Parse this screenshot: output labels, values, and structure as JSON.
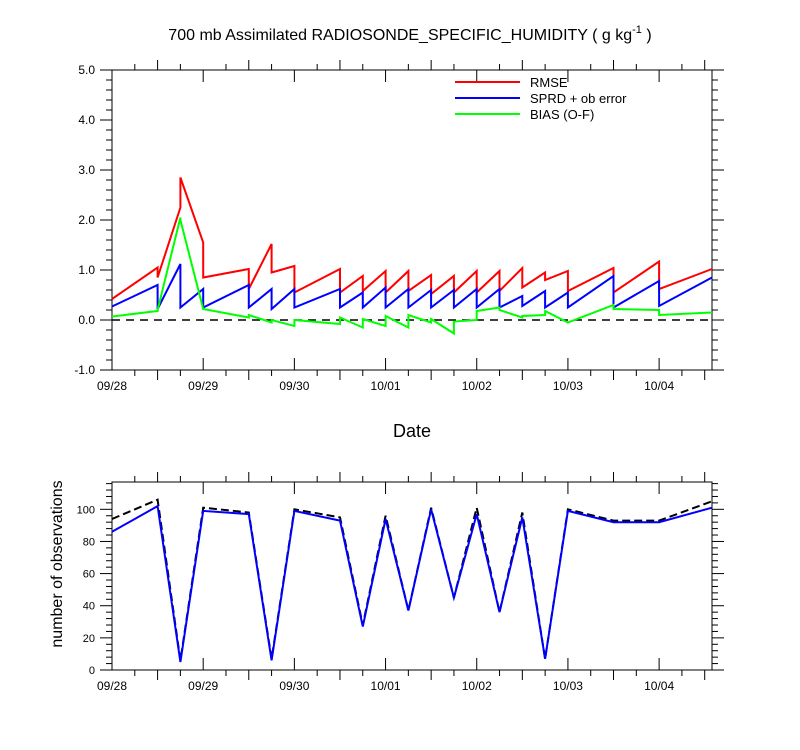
{
  "title": "700 mb Assimilated RADIOSONDE_SPECIFIC_HUMIDITY ( g kg",
  "title_superscript": "-1",
  "title_close": " )",
  "chart_data": [
    {
      "type": "line",
      "name": "error-statistics",
      "xlabel": "Date",
      "ylabel": "",
      "x_tick_labels": [
        "09/28",
        "09/29",
        "09/30",
        "10/01",
        "10/02",
        "10/03",
        "10/04"
      ],
      "xlim": [
        0,
        6.58
      ],
      "ylim": [
        -1.0,
        5.0
      ],
      "y_ticks": [
        -1.0,
        0.0,
        1.0,
        2.0,
        3.0,
        4.0,
        5.0
      ],
      "y_tick_labels": [
        "-1.0",
        "0.0",
        "1.0",
        "2.0",
        "3.0",
        "4.0",
        "5.0"
      ],
      "legend_position": "top-right",
      "reference_line": 0.0,
      "series": [
        {
          "name": "RMSE",
          "color": "#ff0000",
          "x": [
            0,
            0.5,
            0.5,
            0.75,
            0.75,
            1.0,
            1.0,
            1.5,
            1.5,
            1.75,
            1.75,
            2.0,
            2.0,
            2.5,
            2.5,
            2.75,
            2.75,
            3.0,
            3.0,
            3.25,
            3.25,
            3.5,
            3.5,
            3.75,
            3.75,
            4.0,
            4.0,
            4.25,
            4.25,
            4.5,
            4.5,
            4.75,
            4.75,
            5.0,
            5.0,
            5.5,
            5.5,
            6.0,
            6.0,
            6.58
          ],
          "values": [
            0.42,
            1.05,
            0.85,
            2.25,
            2.85,
            1.55,
            0.85,
            1.02,
            0.62,
            1.52,
            0.95,
            1.08,
            0.55,
            1.02,
            0.55,
            0.88,
            0.58,
            0.98,
            0.55,
            0.98,
            0.58,
            0.9,
            0.52,
            0.88,
            0.55,
            0.98,
            0.55,
            0.98,
            0.58,
            1.04,
            0.65,
            0.95,
            0.8,
            0.98,
            0.58,
            1.04,
            0.55,
            1.17,
            0.62,
            1.02
          ]
        },
        {
          "name": "SPRD + ob error",
          "color": "#0000ff",
          "x": [
            0,
            0.5,
            0.5,
            0.75,
            0.75,
            1.0,
            1.0,
            1.5,
            1.5,
            1.75,
            1.75,
            2.0,
            2.0,
            2.5,
            2.5,
            2.75,
            2.75,
            3.0,
            3.0,
            3.25,
            3.25,
            3.5,
            3.5,
            3.75,
            3.75,
            4.0,
            4.0,
            4.25,
            4.25,
            4.5,
            4.5,
            4.75,
            4.75,
            5.0,
            5.0,
            5.5,
            5.5,
            6.0,
            6.0,
            6.58
          ],
          "values": [
            0.27,
            0.7,
            0.22,
            1.12,
            0.25,
            0.62,
            0.25,
            0.7,
            0.25,
            0.62,
            0.22,
            0.62,
            0.25,
            0.62,
            0.25,
            0.55,
            0.25,
            0.65,
            0.25,
            0.62,
            0.25,
            0.6,
            0.25,
            0.6,
            0.25,
            0.62,
            0.25,
            0.62,
            0.25,
            0.48,
            0.28,
            0.58,
            0.25,
            0.55,
            0.25,
            0.88,
            0.25,
            0.78,
            0.28,
            0.85
          ]
        },
        {
          "name": "BIAS (O-F)",
          "color": "#00ff00",
          "x": [
            0,
            0.5,
            0.5,
            0.75,
            0.75,
            1.0,
            1.0,
            1.5,
            1.5,
            1.75,
            1.75,
            2.0,
            2.0,
            2.5,
            2.5,
            2.75,
            2.75,
            3.0,
            3.0,
            3.25,
            3.25,
            3.5,
            3.5,
            3.75,
            3.75,
            4.0,
            4.0,
            4.25,
            4.25,
            4.5,
            4.5,
            4.75,
            4.75,
            5.0,
            5.0,
            5.5,
            5.5,
            6.0,
            6.0,
            6.58
          ],
          "values": [
            0.07,
            0.18,
            0.2,
            2.05,
            2.0,
            0.22,
            0.22,
            0.05,
            0.1,
            -0.05,
            0.0,
            -0.12,
            0.0,
            -0.08,
            0.05,
            -0.15,
            0.02,
            -0.12,
            0.08,
            -0.15,
            0.1,
            -0.05,
            0.02,
            -0.27,
            -0.03,
            0.0,
            0.18,
            0.25,
            0.2,
            0.05,
            0.08,
            0.1,
            0.18,
            -0.05,
            -0.05,
            0.3,
            0.22,
            0.2,
            0.1,
            0.15
          ]
        }
      ]
    },
    {
      "type": "line",
      "name": "observation-counts",
      "xlabel": "",
      "ylabel": "number of observations",
      "x_tick_labels": [
        "09/28",
        "09/29",
        "09/30",
        "10/01",
        "10/02",
        "10/03",
        "10/04"
      ],
      "xlim": [
        0,
        6.58
      ],
      "ylim": [
        0,
        117
      ],
      "y_ticks": [
        0,
        20,
        40,
        60,
        80,
        100
      ],
      "y_tick_labels": [
        "0",
        "20",
        "40",
        "60",
        "80",
        "100"
      ],
      "series": [
        {
          "name": "observations (dashed)",
          "color": "#000000",
          "dashed": true,
          "x": [
            0,
            0.5,
            0.75,
            1.0,
            1.5,
            1.75,
            2.0,
            2.5,
            2.75,
            3.0,
            3.25,
            3.5,
            3.75,
            4.0,
            4.25,
            4.5,
            4.75,
            5.0,
            5.5,
            6.0,
            6.58
          ],
          "values": [
            94,
            106,
            6,
            101,
            98,
            7,
            100,
            95,
            28,
            96,
            37,
            101,
            45,
            101,
            36,
            98,
            7,
            100,
            93,
            93,
            105
          ]
        },
        {
          "name": "observations (solid)",
          "color": "#0000ff",
          "dashed": false,
          "x": [
            0,
            0.5,
            0.75,
            1.0,
            1.5,
            1.75,
            2.0,
            2.5,
            2.75,
            3.0,
            3.25,
            3.5,
            3.75,
            4.0,
            4.25,
            4.5,
            4.75,
            5.0,
            5.5,
            6.0,
            6.58
          ],
          "values": [
            86,
            102,
            5,
            99,
            97,
            6,
            99,
            93,
            27,
            94,
            37,
            100,
            45,
            97,
            36,
            95,
            7,
            99,
            92,
            92,
            101
          ]
        }
      ]
    }
  ]
}
